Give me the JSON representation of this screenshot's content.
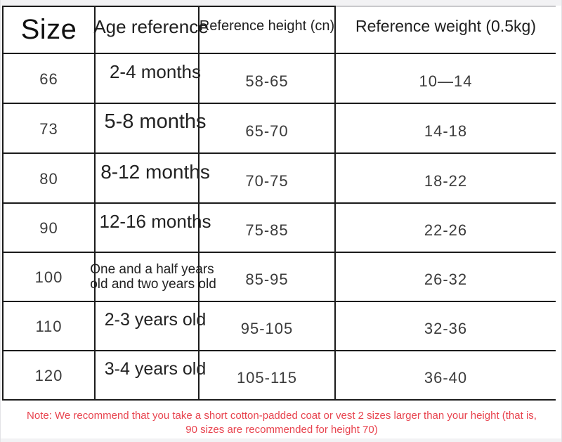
{
  "chart_data": {
    "type": "table",
    "title": "",
    "columns": [
      "Size",
      "Age reference",
      "Reference height (cn)",
      "Reference weight (0.5kg)"
    ],
    "rows": [
      [
        "66",
        "2-4 months",
        "58-65",
        "10—14"
      ],
      [
        "73",
        "5-8 months",
        "65-70",
        "14-18"
      ],
      [
        "80",
        "8-12 months",
        "70-75",
        "18-22"
      ],
      [
        "90",
        "12-16 months",
        "75-85",
        "22-26"
      ],
      [
        "100",
        "One and a half years old and two years old",
        "85-95",
        "26-32"
      ],
      [
        "110",
        "2-3 years old",
        "95-105",
        "32-36"
      ],
      [
        "120",
        "3-4 years old",
        "105-115",
        "36-40"
      ]
    ]
  },
  "table": {
    "headers": {
      "size": "Size",
      "age": "Age reference",
      "height": "Reference height (cn)",
      "weight": "Reference weight (0.5kg)"
    },
    "rows": [
      {
        "size": "66",
        "age": "2-4 months",
        "height": "58-65",
        "weight": "10—14"
      },
      {
        "size": "73",
        "age": "5-8 months",
        "height": "65-70",
        "weight": "14-18"
      },
      {
        "size": "80",
        "age": "8-12 months",
        "height": "70-75",
        "weight": "18-22"
      },
      {
        "size": "90",
        "age": "12-16 months",
        "height": "75-85",
        "weight": "22-26"
      },
      {
        "size": "100",
        "age_line1": "One and a half years",
        "age_line2": "old and two years old",
        "height": "85-95",
        "weight": "26-32"
      },
      {
        "size": "110",
        "age": "2-3 years old",
        "height": "95-105",
        "weight": "32-36"
      },
      {
        "size": "120",
        "age": "3-4 years old",
        "height": "105-115",
        "weight": "36-40"
      }
    ]
  },
  "note": {
    "line1": "Note: We recommend that you take a short cotton-padded coat or vest 2 sizes larger than your height (that is,",
    "line2": "90 sizes are recommended for height 70)",
    "color": "#e8434e"
  },
  "colors": {
    "border": "#1b1b1b",
    "note_text": "#e8434e",
    "value_text": "#3b3b3b"
  }
}
